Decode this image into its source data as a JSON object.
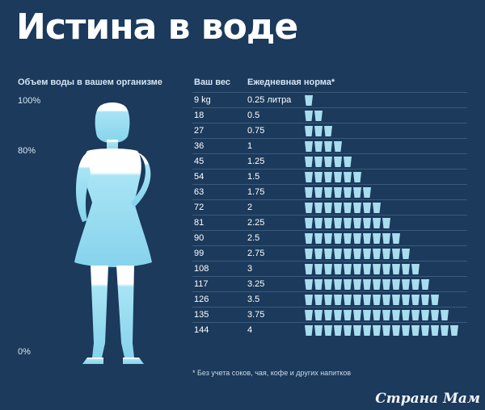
{
  "title": "Истина в воде",
  "left_panel": {
    "header": "Объем воды в вашем организме",
    "labels": {
      "top": "100%",
      "mid": "80%",
      "bottom": "0%"
    }
  },
  "table": {
    "header_weight": "Ваш вес",
    "header_norm": "Ежедневная норма*",
    "rows": [
      {
        "weight": "9 kg",
        "norm": "0.25 литра",
        "glasses": 1
      },
      {
        "weight": "18",
        "norm": "0.5",
        "glasses": 2
      },
      {
        "weight": "27",
        "norm": "0.75",
        "glasses": 3
      },
      {
        "weight": "36",
        "norm": "1",
        "glasses": 4
      },
      {
        "weight": "45",
        "norm": "1.25",
        "glasses": 5
      },
      {
        "weight": "54",
        "norm": "1.5",
        "glasses": 6
      },
      {
        "weight": "63",
        "norm": "1.75",
        "glasses": 7
      },
      {
        "weight": "72",
        "norm": "2",
        "glasses": 8
      },
      {
        "weight": "81",
        "norm": "2.25",
        "glasses": 9
      },
      {
        "weight": "90",
        "norm": "2.5",
        "glasses": 10
      },
      {
        "weight": "99",
        "norm": "2.75",
        "glasses": 11
      },
      {
        "weight": "108",
        "norm": "3",
        "glasses": 12
      },
      {
        "weight": "117",
        "norm": "3.25",
        "glasses": 13
      },
      {
        "weight": "126",
        "norm": "3.5",
        "glasses": 14
      },
      {
        "weight": "135",
        "norm": "3.75",
        "glasses": 15
      },
      {
        "weight": "144",
        "norm": "4",
        "glasses": 16
      }
    ]
  },
  "footnote": "* Без учета соков, чая, кофе и других напитков",
  "watermark": "Страна Мам",
  "colors": {
    "background": "#1b3a5c",
    "glass": "#a8dcef",
    "silhouette_light": "#ffffff",
    "silhouette_water": "#9fe0f2"
  }
}
